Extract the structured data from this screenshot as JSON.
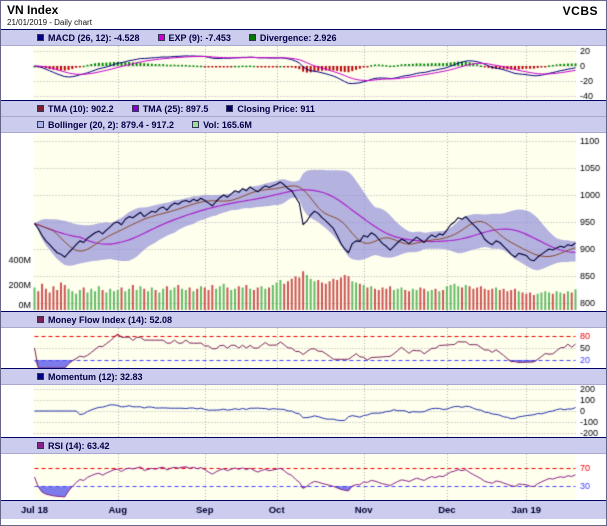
{
  "header": {
    "title": "VN Index",
    "subtitle": "21/01/2019 - Daily chart",
    "brand": "VCBS"
  },
  "legends": {
    "macd": [
      {
        "label": "MACD (26, 12): -4.528",
        "swatch": "#000080"
      },
      {
        "label": "EXP (9): -7.453",
        "swatch": "#cc00cc"
      },
      {
        "label": "Divergence: 2.926",
        "swatch": "#007700"
      }
    ],
    "price_row1": [
      {
        "label": "TMA (10): 902.2",
        "swatch": "#7a1f2b"
      },
      {
        "label": "TMA (25): 897.5",
        "swatch": "#8800cc"
      },
      {
        "label": "Closing Price: 911",
        "swatch": "#000066"
      }
    ],
    "price_row2": [
      {
        "label": "Bollinger (20, 2): 879.4 - 917.2",
        "swatch": "#aab4ea"
      },
      {
        "label": "Vol: 165.6M",
        "swatch": "#99dd99"
      }
    ],
    "mfi": [
      {
        "label": "Money Flow Index (14): 52.08",
        "swatch": "#7a2255"
      }
    ],
    "momentum": [
      {
        "label": "Momentum (12): 32.83",
        "swatch": "#000088"
      }
    ],
    "rsi": [
      {
        "label": "RSI (14): 63.42",
        "swatch": "#882288"
      }
    ]
  },
  "colors": {
    "legend_bg": "#ccccee",
    "plot_bg": "#ffffee",
    "border": "#000066",
    "grid": "#b0b0b0",
    "macd_line": "#000080",
    "exp_line": "#cc00cc",
    "div_pos": "#008800",
    "div_neg": "#bb0000",
    "close_line": "#000033",
    "tma10_line": "#8a4a2a",
    "tma25_line": "#aa22cc",
    "boll_fill": "rgba(148,146,216,0.7)",
    "vol_up": "#66bb66",
    "vol_down": "#cc5555",
    "mfi_line": "#7a2255",
    "momentum_line": "#2233aa",
    "rsi_line": "#882288",
    "overbought": "#ee0000",
    "oversold": "#4444ff",
    "fill_over": "rgba(235,60,60,0.8)",
    "fill_under": "rgba(90,90,235,0.8)",
    "month_text": "#000033"
  },
  "chart_data": {
    "type": "multi-panel-timeseries",
    "title": "VN Index",
    "date_label": "21/01/2019",
    "x_labels": [
      "Jul 18",
      "Aug",
      "Sep",
      "Oct",
      "Nov",
      "Dec",
      "Jan 19"
    ],
    "month_start_indices": [
      0,
      22,
      45,
      64,
      87,
      109,
      130
    ],
    "indicators_current": {
      "macd_26_12": -4.528,
      "exp_9": -7.453,
      "divergence": 2.926,
      "tma_10": 902.2,
      "tma_25": 897.5,
      "closing_price": 911,
      "bollinger_lower": 879.4,
      "bollinger_upper": 917.2,
      "volume": "165.6M",
      "money_flow_index_14": 52.08,
      "momentum_12": 32.83,
      "rsi_14": 63.42
    },
    "panels": {
      "macd": {
        "ylim": [
          -46,
          27
        ],
        "yticks": [
          20,
          0,
          -20,
          -40
        ]
      },
      "price": {
        "ylim": [
          785,
          1115
        ],
        "yticks": [
          1100,
          1050,
          1000,
          950,
          900,
          850,
          800
        ],
        "volume_axis": {
          "ticks": [
            "400M",
            "200M",
            "0M"
          ],
          "max_m": 400
        }
      },
      "mfi": {
        "ylim": [
          0,
          100
        ],
        "yticks": [
          80,
          50,
          20
        ],
        "overbought": 80,
        "oversold": 20
      },
      "momentum": {
        "ylim": [
          -235,
          235
        ],
        "yticks": [
          200,
          100,
          0,
          -100,
          -200
        ]
      },
      "rsi": {
        "ylim": [
          0,
          100
        ],
        "yticks": [
          70,
          30
        ],
        "overbought": 70,
        "oversold": 30
      }
    },
    "series": {
      "close": [
        947,
        938,
        925,
        915,
        908,
        900,
        893,
        890,
        885,
        893,
        900,
        908,
        915,
        912,
        920,
        925,
        930,
        933,
        928,
        935,
        941,
        948,
        950,
        945,
        955,
        960,
        958,
        963,
        968,
        960,
        965,
        970,
        968,
        975,
        978,
        972,
        980,
        985,
        983,
        988,
        990,
        987,
        992,
        989,
        994,
        990,
        985,
        980,
        988,
        995,
        1000,
        996,
        1002,
        1008,
        1005,
        1012,
        1008,
        1015,
        1010,
        1006,
        1012,
        1017,
        1014,
        1017,
        1020,
        1024,
        1019,
        1012,
        1008,
        996,
        985,
        945,
        952,
        963,
        970,
        966,
        958,
        952,
        945,
        938,
        925,
        910,
        900,
        893,
        910,
        915,
        914,
        925,
        922,
        930,
        926,
        918,
        910,
        905,
        898,
        905,
        912,
        918,
        915,
        910,
        916,
        922,
        917,
        912,
        920,
        926,
        922,
        928,
        926,
        935,
        945,
        950,
        958,
        955,
        960,
        952,
        945,
        938,
        930,
        918,
        912,
        908,
        915,
        912,
        905,
        898,
        890,
        885,
        892,
        890,
        888,
        880,
        878,
        885,
        890,
        895,
        900,
        898,
        902,
        905,
        903,
        908,
        906,
        911
      ],
      "volume": [
        180,
        150,
        210,
        170,
        140,
        190,
        160,
        220,
        200,
        170,
        150,
        130,
        160,
        180,
        140,
        170,
        150,
        190,
        160,
        140,
        170,
        150,
        160,
        180,
        150,
        170,
        200,
        160,
        190,
        170,
        150,
        180,
        160,
        140,
        170,
        190,
        160,
        180,
        200,
        170,
        160,
        180,
        150,
        170,
        190,
        180,
        160,
        200,
        170,
        190,
        210,
        180,
        160,
        170,
        190,
        180,
        200,
        170,
        160,
        180,
        190,
        170,
        180,
        200,
        220,
        240,
        210,
        230,
        250,
        270,
        260,
        310,
        280,
        250,
        230,
        240,
        220,
        210,
        230,
        250,
        240,
        260,
        280,
        270,
        230,
        220,
        210,
        200,
        180,
        190,
        170,
        160,
        180,
        170,
        190,
        160,
        170,
        180,
        160,
        150,
        170,
        160,
        180,
        170,
        150,
        160,
        170,
        150,
        160,
        190,
        200,
        210,
        190,
        180,
        200,
        190,
        170,
        180,
        190,
        170,
        160,
        170,
        180,
        160,
        170,
        150,
        160,
        170,
        150,
        140,
        130,
        140,
        120,
        130,
        140,
        150,
        140,
        130,
        150,
        140,
        130,
        150,
        140,
        165.6
      ]
    }
  }
}
